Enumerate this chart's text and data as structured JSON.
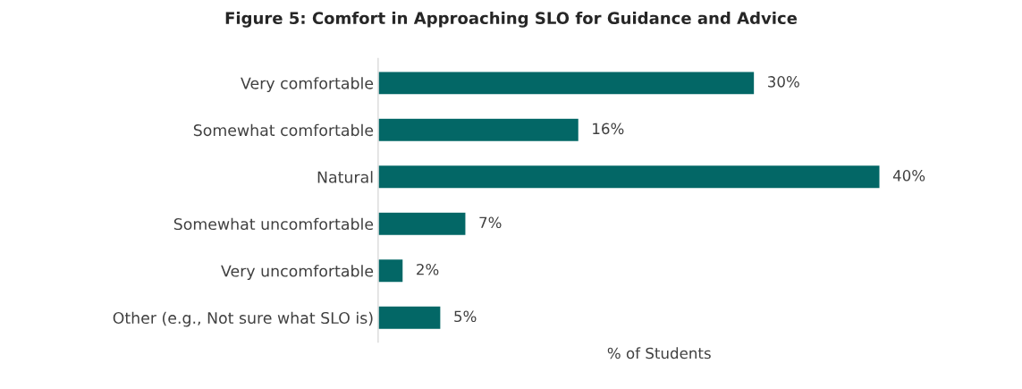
{
  "chart_data": {
    "type": "bar",
    "orientation": "horizontal",
    "title": "Figure 5: Comfort in Approaching SLO for Guidance and Advice",
    "xlabel": "% of Students",
    "categories": [
      "Very comfortable",
      "Somewhat comfortable",
      "Natural",
      "Somewhat uncomfortable",
      "Very uncomfortable",
      "Other (e.g., Not sure what SLO is)"
    ],
    "values": [
      30,
      16,
      40,
      7,
      2,
      5
    ],
    "value_labels": [
      "30%",
      "16%",
      "40%",
      "7%",
      "2%",
      "5%"
    ],
    "color": "#036766",
    "grid": false,
    "legend": false
  }
}
